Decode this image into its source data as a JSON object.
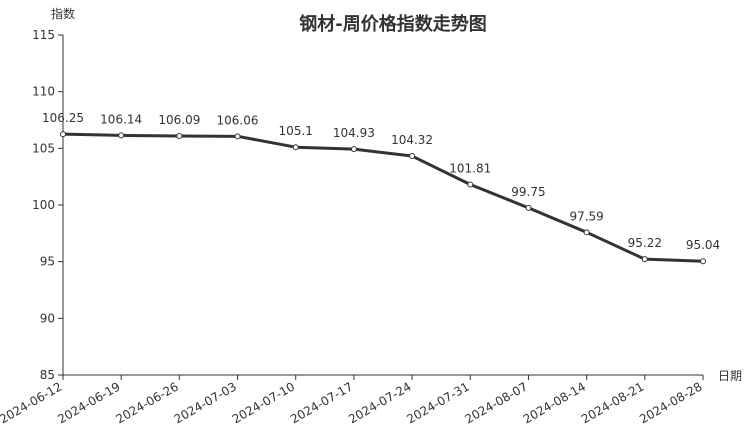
{
  "chart_data": {
    "type": "line",
    "title": "钢材-周价格指数走势图",
    "y_label": "指数",
    "x_label": "日期",
    "categories": [
      "2024-06-12",
      "2024-06-19",
      "2024-06-26",
      "2024-07-03",
      "2024-07-10",
      "2024-07-17",
      "2024-07-24",
      "2024-07-31",
      "2024-08-07",
      "2024-08-14",
      "2024-08-21",
      "2024-08-28"
    ],
    "series": [
      {
        "name": "钢材",
        "color": "#333333",
        "values": [
          106.25,
          106.14,
          106.09,
          106.06,
          105.1,
          104.93,
          104.32,
          101.81,
          99.75,
          97.59,
          95.22,
          95.04
        ]
      }
    ],
    "ylim": [
      85,
      115
    ],
    "yticks": [
      85,
      90,
      95,
      100,
      105,
      110,
      115
    ],
    "grid": false
  }
}
